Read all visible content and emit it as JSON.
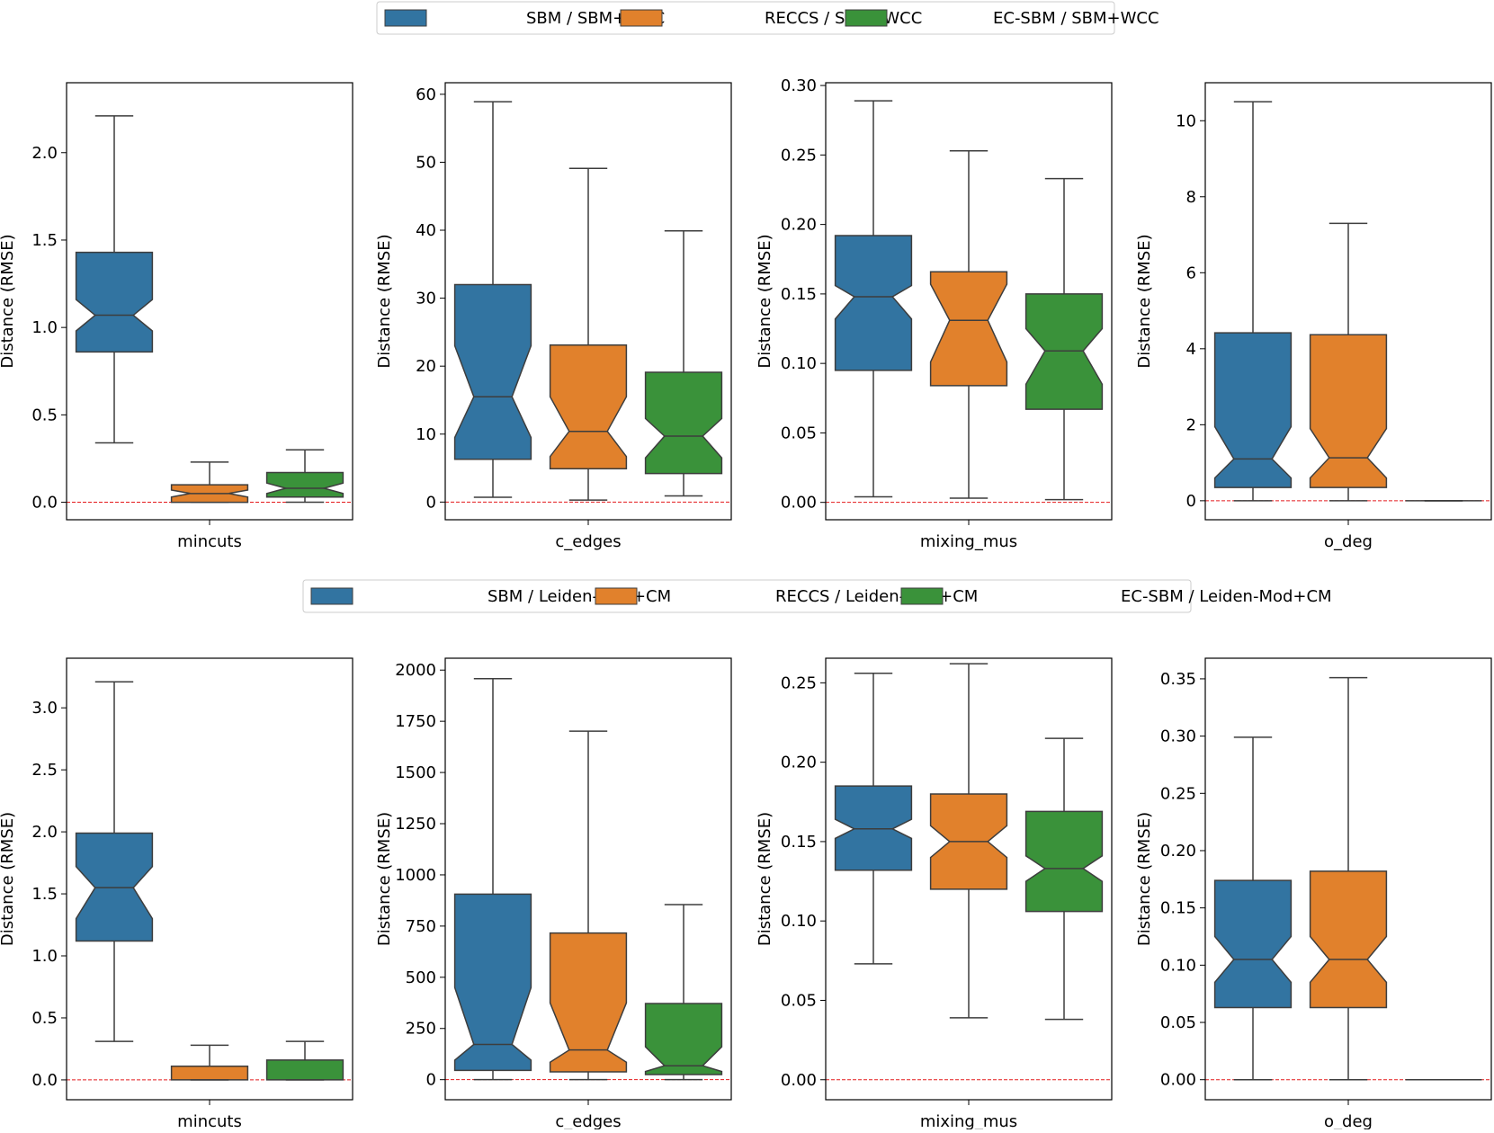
{
  "legends": [
    {
      "entries": [
        "SBM / SBM+WCC",
        "RECCS / SBM+WCC",
        "EC-SBM / SBM+WCC"
      ]
    },
    {
      "entries": [
        "SBM / Leiden-Mod+CM",
        "RECCS / Leiden-Mod+CM",
        "EC-SBM / Leiden-Mod+CM"
      ]
    }
  ],
  "colors": {
    "series": [
      "#3274a1",
      "#e1812c",
      "#3a923a"
    ],
    "reference_line": "#e41a1c"
  },
  "chart_data": [
    {
      "type": "box",
      "notched": true,
      "xlabel": "mincuts",
      "ylabel": "Distance (RMSE)",
      "ylim": [
        -0.1,
        2.4
      ],
      "ticks": [
        0.0,
        0.5,
        1.0,
        1.5,
        2.0
      ],
      "tick_labels": [
        "0.0",
        "0.5",
        "1.0",
        "1.5",
        "2.0"
      ],
      "reference_line": 0,
      "boxes": [
        {
          "series": "SBM / SBM+WCC",
          "whislo": 0.34,
          "q1": 0.86,
          "med": 1.07,
          "q3": 1.43,
          "whishi": 2.21,
          "notch_lo": 0.98,
          "notch_hi": 1.16
        },
        {
          "series": "RECCS / SBM+WCC",
          "whislo": 0.0,
          "q1": 0.0,
          "med": 0.05,
          "q3": 0.1,
          "whishi": 0.23,
          "notch_lo": 0.03,
          "notch_hi": 0.07
        },
        {
          "series": "EC-SBM / SBM+WCC",
          "whislo": 0.0,
          "q1": 0.03,
          "med": 0.08,
          "q3": 0.17,
          "whishi": 0.3,
          "notch_lo": 0.05,
          "notch_hi": 0.11
        }
      ]
    },
    {
      "type": "box",
      "notched": true,
      "xlabel": "c_edges",
      "ylabel": "Distance (RMSE)",
      "ylim": [
        -2.6,
        61.7
      ],
      "ticks": [
        0,
        10,
        20,
        30,
        40,
        50,
        60
      ],
      "tick_labels": [
        "0",
        "10",
        "20",
        "30",
        "40",
        "50",
        "60"
      ],
      "reference_line": 0,
      "boxes": [
        {
          "series": "SBM / SBM+WCC",
          "whislo": 0.7,
          "q1": 6.3,
          "med": 15.5,
          "q3": 32.0,
          "whishi": 58.9,
          "notch_lo": 9.5,
          "notch_hi": 23.0
        },
        {
          "series": "RECCS / SBM+WCC",
          "whislo": 0.3,
          "q1": 4.9,
          "med": 10.4,
          "q3": 23.1,
          "whishi": 49.1,
          "notch_lo": 6.7,
          "notch_hi": 15.5
        },
        {
          "series": "EC-SBM / SBM+WCC",
          "whislo": 0.9,
          "q1": 4.2,
          "med": 9.7,
          "q3": 19.1,
          "whishi": 39.9,
          "notch_lo": 6.5,
          "notch_hi": 12.3
        }
      ]
    },
    {
      "type": "box",
      "notched": true,
      "xlabel": "mixing_mus",
      "ylabel": "Distance (RMSE)",
      "ylim": [
        -0.0125,
        0.302
      ],
      "ticks": [
        0.0,
        0.05,
        0.1,
        0.15,
        0.2,
        0.25,
        0.3
      ],
      "tick_labels": [
        "0.00",
        "0.05",
        "0.10",
        "0.15",
        "0.20",
        "0.25",
        "0.30"
      ],
      "reference_line": 0,
      "boxes": [
        {
          "series": "SBM / SBM+WCC",
          "whislo": 0.004,
          "q1": 0.095,
          "med": 0.148,
          "q3": 0.192,
          "whishi": 0.289,
          "notch_lo": 0.132,
          "notch_hi": 0.156
        },
        {
          "series": "RECCS / SBM+WCC",
          "whislo": 0.003,
          "q1": 0.084,
          "med": 0.131,
          "q3": 0.166,
          "whishi": 0.253,
          "notch_lo": 0.101,
          "notch_hi": 0.157
        },
        {
          "series": "EC-SBM / SBM+WCC",
          "whislo": 0.002,
          "q1": 0.067,
          "med": 0.109,
          "q3": 0.15,
          "whishi": 0.233,
          "notch_lo": 0.085,
          "notch_hi": 0.125
        }
      ]
    },
    {
      "type": "box",
      "notched": true,
      "xlabel": "o_deg",
      "ylabel": "Distance (RMSE)",
      "ylim": [
        -0.5,
        11.0
      ],
      "ticks": [
        0,
        2,
        4,
        6,
        8,
        10
      ],
      "tick_labels": [
        "0",
        "2",
        "4",
        "6",
        "8",
        "10"
      ],
      "reference_line": 0,
      "boxes": [
        {
          "series": "SBM / SBM+WCC",
          "whislo": 0.0,
          "q1": 0.35,
          "med": 1.1,
          "q3": 4.42,
          "whishi": 10.5,
          "notch_lo": 0.6,
          "notch_hi": 1.95
        },
        {
          "series": "RECCS / SBM+WCC",
          "whislo": 0.0,
          "q1": 0.35,
          "med": 1.13,
          "q3": 4.37,
          "whishi": 7.3,
          "notch_lo": 0.6,
          "notch_hi": 1.9
        },
        {
          "series": "EC-SBM / SBM+WCC",
          "whislo": 0.0,
          "q1": 0.0,
          "med": 0.0,
          "q3": 0.0,
          "whishi": 0.0,
          "notch_lo": 0.0,
          "notch_hi": 0.0
        }
      ]
    },
    {
      "type": "box",
      "notched": true,
      "xlabel": "mincuts",
      "ylabel": "Distance (RMSE)",
      "ylim": [
        -0.16,
        3.4
      ],
      "ticks": [
        0.0,
        0.5,
        1.0,
        1.5,
        2.0,
        2.5,
        3.0
      ],
      "tick_labels": [
        "0.0",
        "0.5",
        "1.0",
        "1.5",
        "2.0",
        "2.5",
        "3.0"
      ],
      "reference_line": 0,
      "boxes": [
        {
          "series": "SBM / Leiden-Mod+CM",
          "whislo": 0.31,
          "q1": 1.12,
          "med": 1.55,
          "q3": 1.99,
          "whishi": 3.21,
          "notch_lo": 1.3,
          "notch_hi": 1.72
        },
        {
          "series": "RECCS / Leiden-Mod+CM",
          "whislo": 0.0,
          "q1": 0.0,
          "med": 0.0,
          "q3": 0.11,
          "whishi": 0.28,
          "notch_lo": 0.0,
          "notch_hi": 0.0
        },
        {
          "series": "EC-SBM / Leiden-Mod+CM",
          "whislo": 0.0,
          "q1": 0.0,
          "med": 0.0,
          "q3": 0.16,
          "whishi": 0.31,
          "notch_lo": 0.0,
          "notch_hi": 0.0
        }
      ]
    },
    {
      "type": "box",
      "notched": true,
      "xlabel": "c_edges",
      "ylabel": "Distance (RMSE)",
      "ylim": [
        -98,
        2058
      ],
      "ticks": [
        0,
        250,
        500,
        750,
        1000,
        1250,
        1500,
        1750,
        2000
      ],
      "tick_labels": [
        "0",
        "250",
        "500",
        "750",
        "1000",
        "1250",
        "1500",
        "1750",
        "2000"
      ],
      "reference_line": 0,
      "boxes": [
        {
          "series": "SBM / Leiden-Mod+CM",
          "whislo": 0,
          "q1": 45,
          "med": 172,
          "q3": 906,
          "whishi": 1958,
          "notch_lo": 95,
          "notch_hi": 450
        },
        {
          "series": "RECCS / Leiden-Mod+CM",
          "whislo": 0,
          "q1": 38,
          "med": 145,
          "q3": 716,
          "whishi": 1702,
          "notch_lo": 85,
          "notch_hi": 375
        },
        {
          "series": "EC-SBM / Leiden-Mod+CM",
          "whislo": 0,
          "q1": 25,
          "med": 68,
          "q3": 372,
          "whishi": 855,
          "notch_lo": 40,
          "notch_hi": 160
        }
      ]
    },
    {
      "type": "box",
      "notched": true,
      "xlabel": "mixing_mus",
      "ylabel": "Distance (RMSE)",
      "ylim": [
        -0.0126,
        0.2655
      ],
      "ticks": [
        0.0,
        0.05,
        0.1,
        0.15,
        0.2,
        0.25
      ],
      "tick_labels": [
        "0.00",
        "0.05",
        "0.10",
        "0.15",
        "0.20",
        "0.25"
      ],
      "reference_line": 0,
      "boxes": [
        {
          "series": "SBM / Leiden-Mod+CM",
          "whislo": 0.073,
          "q1": 0.132,
          "med": 0.158,
          "q3": 0.185,
          "whishi": 0.256,
          "notch_lo": 0.152,
          "notch_hi": 0.164
        },
        {
          "series": "RECCS / Leiden-Mod+CM",
          "whislo": 0.039,
          "q1": 0.12,
          "med": 0.15,
          "q3": 0.18,
          "whishi": 0.262,
          "notch_lo": 0.14,
          "notch_hi": 0.16
        },
        {
          "series": "EC-SBM / Leiden-Mod+CM",
          "whislo": 0.038,
          "q1": 0.106,
          "med": 0.133,
          "q3": 0.169,
          "whishi": 0.215,
          "notch_lo": 0.125,
          "notch_hi": 0.141
        }
      ]
    },
    {
      "type": "box",
      "notched": true,
      "xlabel": "o_deg",
      "ylabel": "Distance (RMSE)",
      "ylim": [
        -0.0175,
        0.368
      ],
      "ticks": [
        0.0,
        0.05,
        0.1,
        0.15,
        0.2,
        0.25,
        0.3,
        0.35
      ],
      "tick_labels": [
        "0.00",
        "0.05",
        "0.10",
        "0.15",
        "0.20",
        "0.25",
        "0.30",
        "0.35"
      ],
      "reference_line": 0,
      "boxes": [
        {
          "series": "SBM / Leiden-Mod+CM",
          "whislo": 0.0,
          "q1": 0.063,
          "med": 0.105,
          "q3": 0.174,
          "whishi": 0.299,
          "notch_lo": 0.085,
          "notch_hi": 0.125
        },
        {
          "series": "RECCS / Leiden-Mod+CM",
          "whislo": 0.0,
          "q1": 0.063,
          "med": 0.105,
          "q3": 0.182,
          "whishi": 0.351,
          "notch_lo": 0.085,
          "notch_hi": 0.125
        },
        {
          "series": "EC-SBM / Leiden-Mod+CM",
          "whislo": 0.0,
          "q1": 0.0,
          "med": 0.0,
          "q3": 0.0,
          "whishi": 0.0,
          "notch_lo": 0.0,
          "notch_hi": 0.0
        }
      ]
    }
  ]
}
